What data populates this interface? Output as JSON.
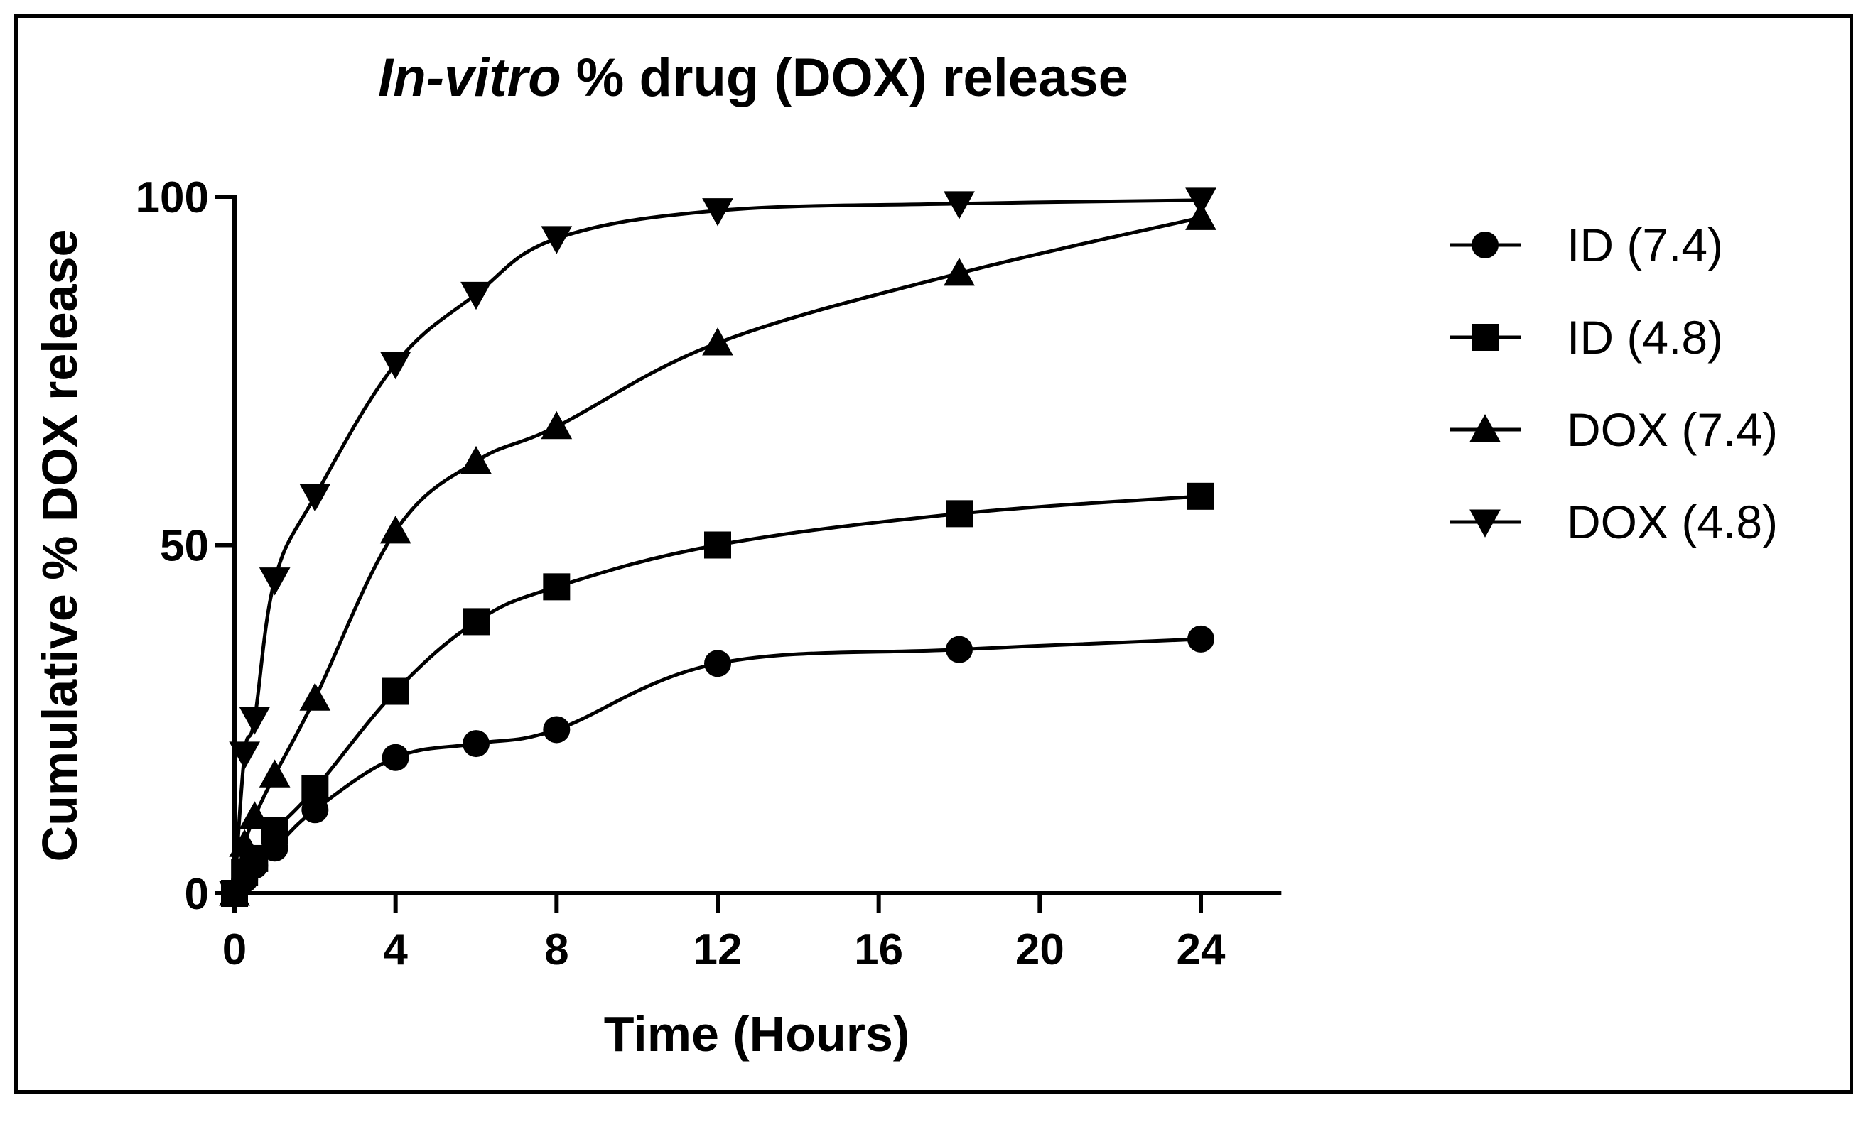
{
  "chart_data": {
    "type": "line",
    "title_italic": "In-vitro",
    "title_rest": " % drug (DOX) release",
    "xlabel": "Time (Hours)",
    "ylabel": "Cumulative % DOX release",
    "xlim": [
      0,
      26
    ],
    "ylim": [
      0,
      100
    ],
    "xticks": [
      0,
      4,
      8,
      12,
      16,
      20,
      24
    ],
    "yticks": [
      0,
      50,
      100
    ],
    "x": [
      0,
      0.25,
      0.5,
      1,
      2,
      4,
      6,
      8,
      12,
      18,
      24
    ],
    "grid": false,
    "legend_position": "right",
    "series": [
      {
        "name": "ID (7.4)",
        "marker": "circle",
        "values": [
          0,
          2,
          4,
          6.5,
          12,
          19.5,
          21.5,
          23.5,
          33,
          35,
          36.5
        ]
      },
      {
        "name": "ID (4.8)",
        "marker": "square",
        "values": [
          0,
          3,
          5,
          9,
          15,
          29,
          39,
          44,
          50,
          54.5,
          57
        ]
      },
      {
        "name": "DOX (7.4)",
        "marker": "triangle-up",
        "values": [
          0,
          7,
          11,
          17,
          28,
          52,
          62,
          67,
          79,
          89,
          97
        ]
      },
      {
        "name": "DOX (4.8)",
        "marker": "triangle-down",
        "values": [
          0,
          20,
          25,
          45,
          57,
          76,
          86,
          94,
          98,
          99,
          99.5
        ]
      }
    ],
    "line_color": "#000000"
  }
}
